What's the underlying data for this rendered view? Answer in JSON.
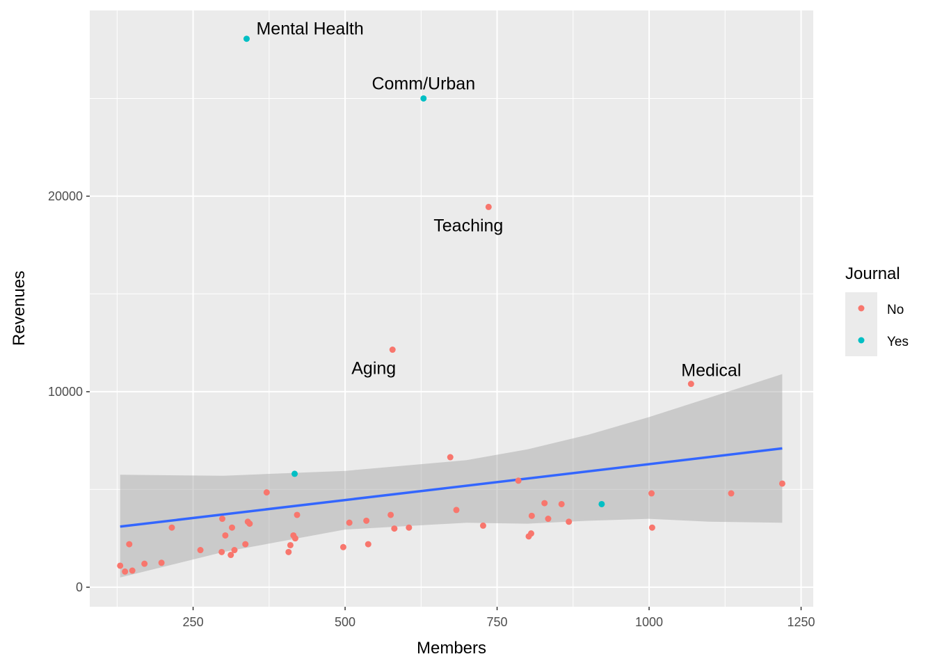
{
  "chart_data": {
    "type": "scatter",
    "xlabel": "Members",
    "ylabel": "Revenues",
    "xlim": [
      80,
      1270
    ],
    "ylim": [
      -1000,
      29500
    ],
    "x_ticks": [
      250,
      500,
      750,
      1000,
      1250
    ],
    "y_ticks": [
      0,
      10000,
      20000
    ],
    "grid": true,
    "legend": {
      "title": "Journal",
      "position": "right",
      "entries": [
        {
          "label": "No",
          "color": "#F8766D"
        },
        {
          "label": "Yes",
          "color": "#00BFC4"
        }
      ]
    },
    "series": [
      {
        "name": "No",
        "color": "#F8766D",
        "points": [
          {
            "x": 130,
            "y": 1100
          },
          {
            "x": 138,
            "y": 800
          },
          {
            "x": 145,
            "y": 2200
          },
          {
            "x": 150,
            "y": 850
          },
          {
            "x": 170,
            "y": 1200
          },
          {
            "x": 198,
            "y": 1250
          },
          {
            "x": 215,
            "y": 3050
          },
          {
            "x": 262,
            "y": 1900
          },
          {
            "x": 297,
            "y": 1800
          },
          {
            "x": 298,
            "y": 3500
          },
          {
            "x": 303,
            "y": 2650
          },
          {
            "x": 312,
            "y": 1650
          },
          {
            "x": 314,
            "y": 3050
          },
          {
            "x": 318,
            "y": 1900
          },
          {
            "x": 336,
            "y": 2200
          },
          {
            "x": 340,
            "y": 3350
          },
          {
            "x": 343,
            "y": 3250
          },
          {
            "x": 371,
            "y": 4850
          },
          {
            "x": 407,
            "y": 1800
          },
          {
            "x": 410,
            "y": 2150
          },
          {
            "x": 415,
            "y": 2650
          },
          {
            "x": 418,
            "y": 2500
          },
          {
            "x": 421,
            "y": 3700
          },
          {
            "x": 497,
            "y": 2050
          },
          {
            "x": 507,
            "y": 3300
          },
          {
            "x": 535,
            "y": 3400
          },
          {
            "x": 538,
            "y": 2200
          },
          {
            "x": 575,
            "y": 3700
          },
          {
            "x": 578,
            "y": 12150
          },
          {
            "x": 581,
            "y": 3000
          },
          {
            "x": 605,
            "y": 3050
          },
          {
            "x": 673,
            "y": 6650
          },
          {
            "x": 683,
            "y": 3950
          },
          {
            "x": 727,
            "y": 3150
          },
          {
            "x": 736,
            "y": 19450
          },
          {
            "x": 785,
            "y": 5450
          },
          {
            "x": 802,
            "y": 2600
          },
          {
            "x": 806,
            "y": 2750
          },
          {
            "x": 807,
            "y": 3650
          },
          {
            "x": 828,
            "y": 4300
          },
          {
            "x": 834,
            "y": 3500
          },
          {
            "x": 856,
            "y": 4250
          },
          {
            "x": 868,
            "y": 3350
          },
          {
            "x": 1004,
            "y": 4800
          },
          {
            "x": 1005,
            "y": 3050
          },
          {
            "x": 1069,
            "y": 10400
          },
          {
            "x": 1135,
            "y": 4800
          },
          {
            "x": 1219,
            "y": 5300
          }
        ]
      },
      {
        "name": "Yes",
        "color": "#00BFC4",
        "points": [
          {
            "x": 338,
            "y": 28050
          },
          {
            "x": 417,
            "y": 5800
          },
          {
            "x": 629,
            "y": 25000
          },
          {
            "x": 922,
            "y": 4250
          }
        ]
      }
    ],
    "trend_line": {
      "x": [
        130,
        1219
      ],
      "y": [
        3100,
        7100
      ],
      "color": "#3366FF"
    },
    "confidence_band": {
      "x": [
        130,
        300,
        500,
        700,
        800,
        900,
        1000,
        1100,
        1219
      ],
      "upper": [
        5750,
        5700,
        5950,
        6500,
        7050,
        7800,
        8700,
        9700,
        10900
      ],
      "lower": [
        500,
        1800,
        2950,
        3300,
        3250,
        3400,
        3500,
        3350,
        3300
      ]
    },
    "annotations": [
      {
        "text": "Mental Health",
        "x": 338,
        "y": 28050,
        "anchor": "start",
        "dx": 14,
        "dy": -6
      },
      {
        "text": "Comm/Urban",
        "x": 629,
        "y": 25000,
        "anchor": "middle",
        "dx": 0,
        "dy": -13
      },
      {
        "text": "Teaching",
        "x": 736,
        "y": 19450,
        "anchor": "middle",
        "dx": -29,
        "dy": 35
      },
      {
        "text": "Aging",
        "x": 578,
        "y": 12150,
        "anchor": "middle",
        "dx": -27,
        "dy": 35
      },
      {
        "text": "Medical",
        "x": 1069,
        "y": 10400,
        "anchor": "middle",
        "dx": 29,
        "dy": -11
      }
    ]
  }
}
